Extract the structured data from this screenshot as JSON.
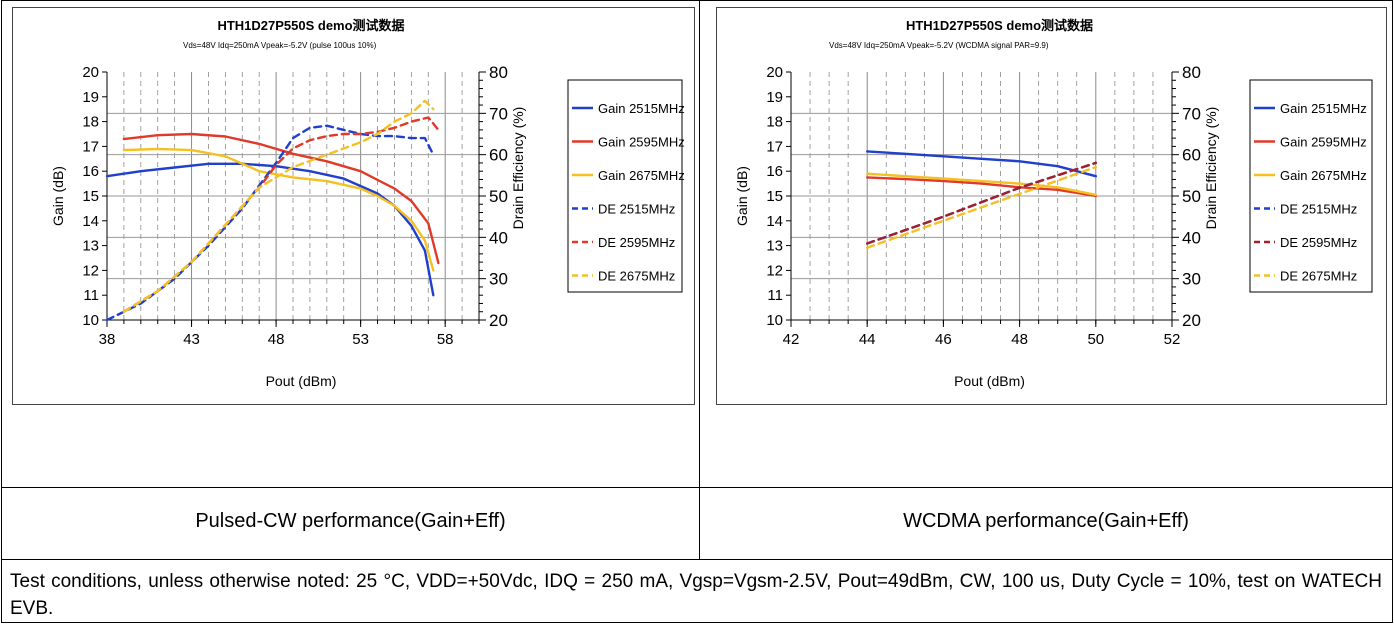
{
  "captions": {
    "left": "Pulsed-CW performance(Gain+Eff)",
    "right": "WCDMA performance(Gain+Eff)"
  },
  "note": "Test conditions, unless otherwise noted: 25 °C, VDD=+50Vdc, IDQ = 250 mA, Vgsp=Vgsm-2.5V, Pout=49dBm, CW, 100 us, Duty Cycle = 10%, test on WATECH EVB.",
  "colors": {
    "blue": "#1f3fcc",
    "red": "#e03a2a",
    "yellow": "#f5c022",
    "dark_red": "#a3202a"
  },
  "chart_data": [
    {
      "type": "line",
      "title": "HTH1D27P550S demo测试数据",
      "subtitle": "Vds=48V Idq=250mA Vpeak=-5.2V (pulse 100us 10%)",
      "xlabel": "Pout (dBm)",
      "ylabel": "Gain (dB)",
      "y2label": "Drain Efficiency (%)",
      "xlim": [
        38,
        60
      ],
      "xticks": [
        38,
        43,
        48,
        53,
        58
      ],
      "ylim": [
        10,
        20
      ],
      "yticks": [
        10,
        11,
        12,
        13,
        14,
        15,
        16,
        17,
        18,
        19,
        20
      ],
      "y2lim": [
        20,
        80
      ],
      "y2ticks": [
        20,
        30,
        40,
        50,
        60,
        70,
        80
      ],
      "grid": true,
      "legend_position": "right",
      "series": [
        {
          "name": "Gain 2515MHz",
          "axis": "left",
          "color": "#1f3fcc",
          "dash": false,
          "x": [
            38,
            40,
            42,
            44,
            46,
            48,
            50,
            52,
            54,
            55,
            56,
            56.8,
            57.3
          ],
          "y": [
            15.8,
            16.0,
            16.15,
            16.3,
            16.3,
            16.2,
            16.0,
            15.7,
            15.1,
            14.6,
            13.8,
            12.8,
            11.0
          ]
        },
        {
          "name": "Gain 2595MHz",
          "axis": "left",
          "color": "#e03a2a",
          "dash": false,
          "x": [
            39,
            41,
            43,
            45,
            47,
            49,
            51,
            53,
            55,
            56,
            57,
            57.6
          ],
          "y": [
            17.3,
            17.45,
            17.5,
            17.4,
            17.1,
            16.7,
            16.4,
            16.0,
            15.3,
            14.8,
            13.9,
            12.3
          ]
        },
        {
          "name": "Gain 2675MHz",
          "axis": "left",
          "color": "#f5c022",
          "dash": false,
          "x": [
            39,
            41,
            43,
            45,
            47,
            49,
            51,
            53,
            54,
            55,
            56,
            56.8,
            57.3
          ],
          "y": [
            16.85,
            16.9,
            16.85,
            16.6,
            16.0,
            15.75,
            15.6,
            15.3,
            15.0,
            14.6,
            14.0,
            13.2,
            12.0
          ]
        },
        {
          "name": "DE 2515MHz",
          "axis": "right",
          "color": "#1f3fcc",
          "dash": true,
          "x": [
            38,
            40,
            42,
            44,
            46,
            48,
            49,
            50,
            51,
            52,
            53,
            54,
            55,
            56,
            56.8,
            57.3
          ],
          "y": [
            20,
            24,
            30,
            38,
            47,
            58,
            64,
            66.5,
            67,
            66,
            65,
            64.5,
            64.5,
            64,
            64,
            60
          ]
        },
        {
          "name": "DE 2595MHz",
          "axis": "right",
          "color": "#e03a2a",
          "dash": true,
          "x": [
            39,
            41,
            43,
            45,
            47,
            48,
            49,
            50,
            51,
            52,
            53,
            54,
            55,
            56,
            57,
            57.6
          ],
          "y": [
            22,
            27,
            34,
            43,
            52,
            57.5,
            61.5,
            63.5,
            64.5,
            65,
            65,
            65.5,
            66.5,
            68,
            69,
            66
          ]
        },
        {
          "name": "DE 2675MHz",
          "axis": "right",
          "color": "#f5c022",
          "dash": true,
          "x": [
            39,
            41,
            43,
            45,
            47,
            49,
            51,
            53,
            54,
            55,
            56,
            56.8,
            57.3
          ],
          "y": [
            22,
            27,
            34,
            43,
            52,
            57,
            60,
            63,
            65,
            68,
            70,
            73,
            71
          ]
        }
      ]
    },
    {
      "type": "line",
      "title": "HTH1D27P550S demo测试数据",
      "subtitle": "Vds=48V Idq=250mA Vpeak=-5.2V (WCDMA signal PAR=9.9)",
      "xlabel": "Pout (dBm)",
      "ylabel": "Gain (dB)",
      "y2label": "Drain Efficiency (%)",
      "xlim": [
        42,
        52
      ],
      "xticks": [
        42,
        44,
        46,
        48,
        50,
        52
      ],
      "ylim": [
        10,
        20
      ],
      "yticks": [
        10,
        11,
        12,
        13,
        14,
        15,
        16,
        17,
        18,
        19,
        20
      ],
      "y2lim": [
        20,
        80
      ],
      "y2ticks": [
        20,
        30,
        40,
        50,
        60,
        70,
        80
      ],
      "grid": true,
      "legend_position": "right",
      "series": [
        {
          "name": "Gain 2515MHz",
          "axis": "left",
          "color": "#1f3fcc",
          "dash": false,
          "x": [
            44,
            45,
            46,
            47,
            48,
            49,
            50
          ],
          "y": [
            16.8,
            16.7,
            16.6,
            16.5,
            16.4,
            16.2,
            15.8
          ]
        },
        {
          "name": "Gain 2595MHz",
          "axis": "left",
          "color": "#e03a2a",
          "dash": false,
          "x": [
            44,
            45,
            46,
            47,
            48,
            49,
            50
          ],
          "y": [
            15.75,
            15.68,
            15.6,
            15.5,
            15.35,
            15.25,
            15.0
          ]
        },
        {
          "name": "Gain 2675MHz",
          "axis": "left",
          "color": "#f5c022",
          "dash": false,
          "x": [
            44,
            45,
            46,
            47,
            48,
            49,
            50
          ],
          "y": [
            15.9,
            15.8,
            15.7,
            15.6,
            15.5,
            15.35,
            15.05
          ]
        },
        {
          "name": "DE 2515MHz",
          "axis": "right",
          "color": "#1f3fcc",
          "dash": true,
          "x": [
            44,
            46,
            48,
            50
          ],
          "y": [
            38.5,
            45,
            52,
            58
          ]
        },
        {
          "name": "DE 2595MHz",
          "axis": "right",
          "color": "#a3202a",
          "dash": true,
          "x": [
            44,
            46,
            48,
            50
          ],
          "y": [
            38.5,
            45,
            52,
            58
          ]
        },
        {
          "name": "DE 2675MHz",
          "axis": "right",
          "color": "#f5c022",
          "dash": true,
          "x": [
            44,
            46,
            48,
            50
          ],
          "y": [
            37.5,
            44,
            50.5,
            57
          ]
        }
      ]
    }
  ]
}
